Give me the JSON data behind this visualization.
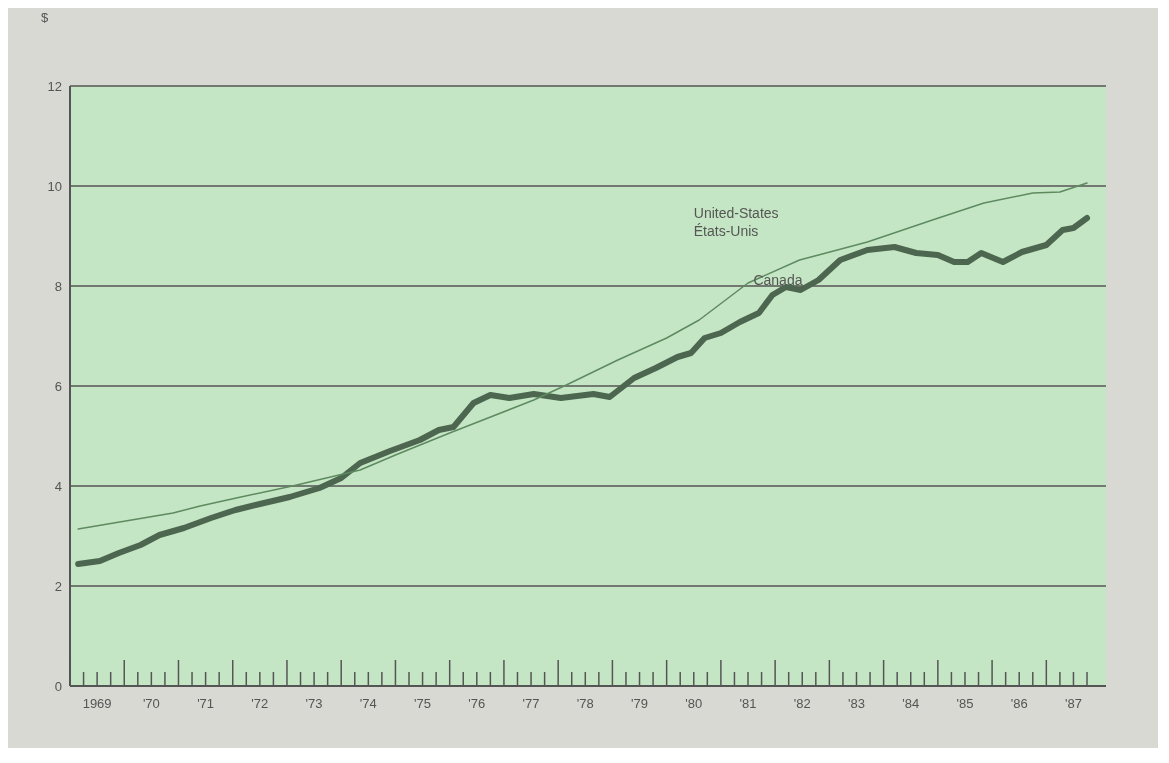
{
  "chart_data": {
    "type": "line",
    "ylabel": "$",
    "grid": "y",
    "marker": "none",
    "line_style": "solid",
    "xlim": [
      1968.5,
      1987.6
    ],
    "ylim": [
      0,
      12
    ],
    "yticks": [
      0,
      2,
      4,
      6,
      8,
      10,
      12
    ],
    "xticks": [
      {
        "value": 1968.5,
        "label": null
      },
      {
        "value": 1968.75,
        "label": null
      },
      {
        "value": 1969,
        "label": "1969"
      },
      {
        "value": 1969.25,
        "label": null
      },
      {
        "value": 1969.5,
        "label": null
      },
      {
        "value": 1969.75,
        "label": null
      },
      {
        "value": 1970,
        "label": "'70"
      },
      {
        "value": 1970.25,
        "label": null
      },
      {
        "value": 1970.5,
        "label": null
      },
      {
        "value": 1970.75,
        "label": null
      },
      {
        "value": 1971,
        "label": "'71"
      },
      {
        "value": 1971.25,
        "label": null
      },
      {
        "value": 1971.5,
        "label": null
      },
      {
        "value": 1971.75,
        "label": null
      },
      {
        "value": 1972,
        "label": "'72"
      },
      {
        "value": 1972.25,
        "label": null
      },
      {
        "value": 1972.5,
        "label": null
      },
      {
        "value": 1972.75,
        "label": null
      },
      {
        "value": 1973,
        "label": "'73"
      },
      {
        "value": 1973.25,
        "label": null
      },
      {
        "value": 1973.5,
        "label": null
      },
      {
        "value": 1973.75,
        "label": null
      },
      {
        "value": 1974,
        "label": "'74"
      },
      {
        "value": 1974.25,
        "label": null
      },
      {
        "value": 1974.5,
        "label": null
      },
      {
        "value": 1974.75,
        "label": null
      },
      {
        "value": 1975,
        "label": "'75"
      },
      {
        "value": 1975.25,
        "label": null
      },
      {
        "value": 1975.5,
        "label": null
      },
      {
        "value": 1975.75,
        "label": null
      },
      {
        "value": 1976,
        "label": "'76"
      },
      {
        "value": 1976.25,
        "label": null
      },
      {
        "value": 1976.5,
        "label": null
      },
      {
        "value": 1976.75,
        "label": null
      },
      {
        "value": 1977,
        "label": "'77"
      },
      {
        "value": 1977.25,
        "label": null
      },
      {
        "value": 1977.5,
        "label": null
      },
      {
        "value": 1977.75,
        "label": null
      },
      {
        "value": 1978,
        "label": "'78"
      },
      {
        "value": 1978.25,
        "label": null
      },
      {
        "value": 1978.5,
        "label": null
      },
      {
        "value": 1978.75,
        "label": null
      },
      {
        "value": 1979,
        "label": "'79"
      },
      {
        "value": 1979.25,
        "label": null
      },
      {
        "value": 1979.5,
        "label": null
      },
      {
        "value": 1979.75,
        "label": null
      },
      {
        "value": 1980,
        "label": "'80"
      },
      {
        "value": 1980.25,
        "label": null
      },
      {
        "value": 1980.5,
        "label": null
      },
      {
        "value": 1980.75,
        "label": null
      },
      {
        "value": 1981,
        "label": "'81"
      },
      {
        "value": 1981.25,
        "label": null
      },
      {
        "value": 1981.5,
        "label": null
      },
      {
        "value": 1981.75,
        "label": null
      },
      {
        "value": 1982,
        "label": "'82"
      },
      {
        "value": 1982.25,
        "label": null
      },
      {
        "value": 1982.5,
        "label": null
      },
      {
        "value": 1982.75,
        "label": null
      },
      {
        "value": 1983,
        "label": "'83"
      },
      {
        "value": 1983.25,
        "label": null
      },
      {
        "value": 1983.5,
        "label": null
      },
      {
        "value": 1983.75,
        "label": null
      },
      {
        "value": 1984,
        "label": "'84"
      },
      {
        "value": 1984.25,
        "label": null
      },
      {
        "value": 1984.5,
        "label": null
      },
      {
        "value": 1984.75,
        "label": null
      },
      {
        "value": 1985,
        "label": "'85"
      },
      {
        "value": 1985.25,
        "label": null
      },
      {
        "value": 1985.5,
        "label": null
      },
      {
        "value": 1985.75,
        "label": null
      },
      {
        "value": 1986,
        "label": "'86"
      },
      {
        "value": 1986.25,
        "label": null
      },
      {
        "value": 1986.5,
        "label": null
      },
      {
        "value": 1986.75,
        "label": null
      },
      {
        "value": 1987,
        "label": "'87"
      },
      {
        "value": 1987.25,
        "label": null
      }
    ],
    "series": [
      {
        "name": "Canada",
        "color": "#4d6650",
        "x": [
          1968.65,
          1969.05,
          1969.4,
          1969.8,
          1970.15,
          1970.6,
          1971.1,
          1971.55,
          1972.0,
          1972.55,
          1973.1,
          1973.5,
          1973.85,
          1974.4,
          1974.95,
          1975.3,
          1975.57,
          1975.94,
          1976.25,
          1976.6,
          1977.05,
          1977.55,
          1978.15,
          1978.45,
          1978.9,
          1979.3,
          1979.7,
          1979.95,
          1980.2,
          1980.5,
          1980.85,
          1981.2,
          1981.45,
          1981.7,
          1981.97,
          1982.3,
          1982.7,
          1983.2,
          1983.7,
          1984.1,
          1984.5,
          1984.8,
          1985.05,
          1985.3,
          1985.7,
          1986.05,
          1986.5,
          1986.8,
          1987.0,
          1987.25
        ],
        "values": [
          2.44,
          2.5,
          2.66,
          2.82,
          3.02,
          3.16,
          3.36,
          3.52,
          3.64,
          3.78,
          3.96,
          4.16,
          4.46,
          4.7,
          4.92,
          5.12,
          5.18,
          5.66,
          5.82,
          5.76,
          5.84,
          5.76,
          5.84,
          5.78,
          6.16,
          6.36,
          6.58,
          6.66,
          6.96,
          7.06,
          7.28,
          7.46,
          7.82,
          7.98,
          7.92,
          8.12,
          8.52,
          8.72,
          8.78,
          8.66,
          8.62,
          8.48,
          8.48,
          8.66,
          8.48,
          8.68,
          8.82,
          9.12,
          9.16,
          9.36
        ]
      },
      {
        "name": "United-States\nÉtats-Unis",
        "color": "#5e8a60",
        "x": [
          1968.65,
          1970.4,
          1970.9,
          1971.65,
          1972.6,
          1973.85,
          1974.5,
          1975.5,
          1977.05,
          1977.65,
          1978.6,
          1979.5,
          1980.1,
          1981.0,
          1981.95,
          1982.3,
          1983.2,
          1984.4,
          1985.35,
          1986.25,
          1986.75,
          1987.25
        ],
        "values": [
          3.14,
          3.46,
          3.6,
          3.78,
          4.0,
          4.32,
          4.62,
          5.06,
          5.72,
          6.02,
          6.52,
          6.96,
          7.32,
          8.06,
          8.52,
          8.62,
          8.88,
          9.32,
          9.66,
          9.86,
          9.88,
          10.06
        ]
      }
    ]
  }
}
